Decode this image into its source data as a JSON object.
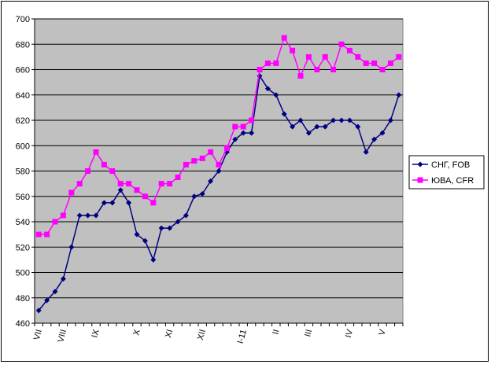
{
  "chart_data": {
    "type": "line",
    "categories": [
      "VII",
      null,
      null,
      "VIII",
      null,
      null,
      null,
      "IX",
      null,
      null,
      null,
      null,
      "X",
      null,
      null,
      null,
      "XI",
      null,
      null,
      null,
      "XII",
      null,
      null,
      null,
      null,
      "I-11",
      null,
      null,
      null,
      "II",
      null,
      null,
      null,
      "III",
      null,
      null,
      null,
      null,
      "IV",
      null,
      null,
      null,
      "V",
      null,
      null
    ],
    "series": [
      {
        "name": "СНГ, FOB",
        "color": "#000080",
        "marker": "diamond",
        "values": [
          470,
          478,
          485,
          495,
          520,
          545,
          545,
          545,
          555,
          555,
          565,
          555,
          530,
          525,
          510,
          535,
          535,
          540,
          545,
          560,
          562,
          572,
          580,
          595,
          605,
          610,
          610,
          655,
          645,
          640,
          625,
          615,
          620,
          610,
          615,
          615,
          620,
          620,
          620,
          615,
          595,
          605,
          610,
          620,
          640
        ]
      },
      {
        "name": "ЮВА, CFR",
        "color": "#ff00ff",
        "marker": "square",
        "values": [
          530,
          530,
          540,
          545,
          563,
          570,
          580,
          595,
          585,
          580,
          570,
          570,
          565,
          560,
          555,
          570,
          570,
          575,
          585,
          588,
          590,
          595,
          585,
          598,
          615,
          615,
          620,
          660,
          665,
          665,
          685,
          675,
          655,
          670,
          660,
          670,
          660,
          680,
          675,
          670,
          665,
          665,
          660,
          665,
          670
        ]
      }
    ],
    "ylim": [
      460,
      700
    ],
    "yticks": [
      460,
      480,
      500,
      520,
      540,
      560,
      580,
      600,
      620,
      640,
      660,
      680,
      700
    ],
    "grid": true,
    "legend": "right"
  }
}
